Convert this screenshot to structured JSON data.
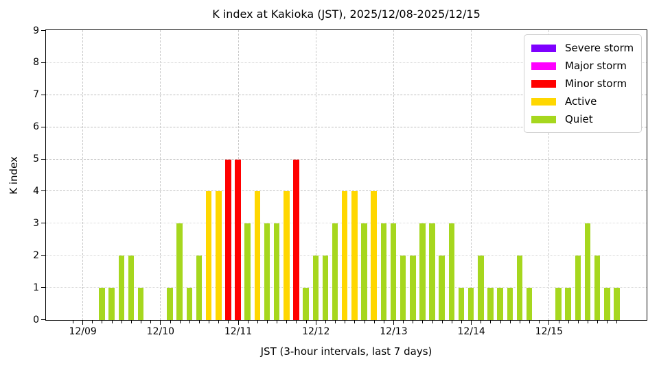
{
  "chart_data": {
    "type": "bar",
    "title": "K index at Kakioka (JST), 2025/12/08-2025/12/15",
    "xlabel": "JST (3-hour intervals, last 7 days)",
    "ylabel": "K index",
    "ylim": [
      0,
      9
    ],
    "yticks": [
      0,
      1,
      2,
      3,
      4,
      5,
      6,
      7,
      8,
      9
    ],
    "interval_hours": 3,
    "first_interval": "12/08 21:00",
    "values": [
      0,
      0,
      0,
      1,
      1,
      2,
      2,
      1,
      0,
      0,
      1,
      3,
      1,
      2,
      4,
      4,
      5,
      5,
      3,
      4,
      3,
      3,
      4,
      5,
      1,
      2,
      2,
      3,
      4,
      4,
      3,
      4,
      3,
      3,
      2,
      2,
      3,
      3,
      2,
      3,
      1,
      1,
      2,
      1,
      1,
      1,
      2,
      1,
      0,
      0,
      1,
      1,
      2,
      3,
      2,
      1,
      1
    ],
    "day_tick_labels": [
      "12/09",
      "12/10",
      "12/11",
      "12/12",
      "12/13",
      "12/14",
      "12/15"
    ],
    "day_tick_indices": [
      1,
      9,
      17,
      25,
      33,
      41,
      49
    ],
    "series_by_day": [
      {
        "date": "12/09",
        "k_values": [
          0,
          0,
          1,
          1,
          2,
          2,
          1,
          0
        ]
      },
      {
        "date": "12/10",
        "k_values": [
          0,
          1,
          3,
          1,
          2,
          4,
          4,
          5
        ]
      },
      {
        "date": "12/11",
        "k_values": [
          5,
          3,
          4,
          3,
          3,
          4,
          5,
          1
        ]
      },
      {
        "date": "12/12",
        "k_values": [
          2,
          2,
          3,
          4,
          4,
          3,
          4,
          3
        ]
      },
      {
        "date": "12/13",
        "k_values": [
          3,
          2,
          2,
          3,
          3,
          2,
          3,
          1
        ]
      },
      {
        "date": "12/14",
        "k_values": [
          1,
          2,
          1,
          1,
          1,
          2,
          1,
          0
        ]
      },
      {
        "date": "12/15",
        "k_values": [
          0,
          1,
          1,
          2,
          3,
          2,
          1,
          1
        ]
      }
    ],
    "legend": [
      {
        "label": "Severe storm",
        "color": "#7F00FF",
        "min_k": 7
      },
      {
        "label": "Major storm",
        "color": "#FF00FF",
        "min_k": 6
      },
      {
        "label": "Minor storm",
        "color": "#FF0000",
        "min_k": 5
      },
      {
        "label": "Active",
        "color": "#FFD700",
        "min_k": 4
      },
      {
        "label": "Quiet",
        "color": "#A6D71E",
        "min_k": 0
      }
    ],
    "legend_position": "upper right",
    "threshold_lines": [
      4,
      5,
      6,
      7
    ],
    "dotted_gridlines": [
      1,
      2,
      3,
      8
    ],
    "grid": true
  }
}
